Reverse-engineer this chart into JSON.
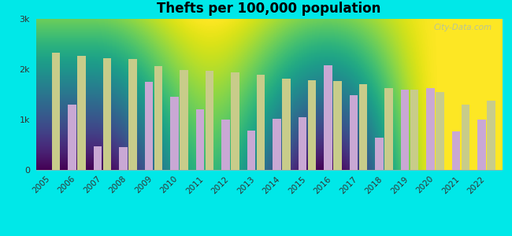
{
  "title": "Thefts per 100,000 population",
  "years": [
    2005,
    2006,
    2007,
    2008,
    2009,
    2010,
    2011,
    2012,
    2013,
    2014,
    2015,
    2016,
    2017,
    2018,
    2019,
    2020,
    2021,
    2022
  ],
  "rose_bud": [
    0,
    1300,
    470,
    460,
    1750,
    1450,
    1200,
    1000,
    780,
    1020,
    1040,
    2080,
    1480,
    640,
    1600,
    1620,
    770,
    1000
  ],
  "us_average": [
    2330,
    2270,
    2220,
    2200,
    2070,
    1980,
    1970,
    1940,
    1890,
    1810,
    1780,
    1760,
    1700,
    1620,
    1590,
    1550,
    1300,
    1380
  ],
  "rose_bud_color": "#c9a8d4",
  "us_average_color": "#c8cc8a",
  "bg_top_color": "#f5fdf5",
  "bg_bottom_color": "#d4f0d4",
  "outer_background": "#00e8e8",
  "ylim": [
    0,
    3000
  ],
  "yticks": [
    0,
    1000,
    2000,
    3000
  ],
  "ytick_labels": [
    "0",
    "1k",
    "2k",
    "3k"
  ],
  "watermark": "City-Data.com"
}
